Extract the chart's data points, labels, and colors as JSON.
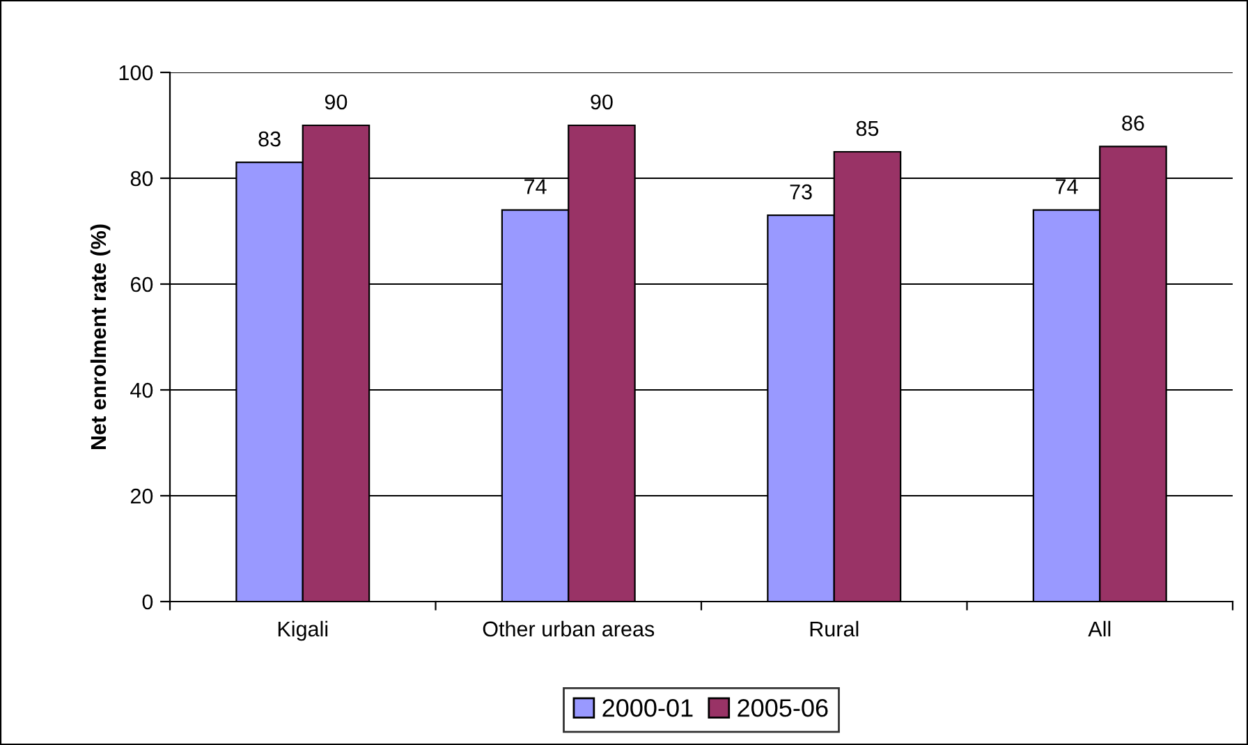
{
  "chart_data": {
    "type": "bar",
    "ylabel": "Net enrolment rate (%)",
    "categories": [
      "Kigali",
      "Other urban areas",
      "Rural",
      "All"
    ],
    "series": [
      {
        "name": "2000-01",
        "color": "#9999ff",
        "values": [
          83,
          74,
          73,
          74
        ]
      },
      {
        "name": "2005-06",
        "color": "#993366",
        "values": [
          90,
          90,
          85,
          86
        ]
      }
    ],
    "ylim": [
      0,
      100
    ],
    "yticks": [
      0,
      20,
      40,
      60,
      80,
      100
    ],
    "grid": "y",
    "legend": "bottom",
    "data_labels": true
  }
}
